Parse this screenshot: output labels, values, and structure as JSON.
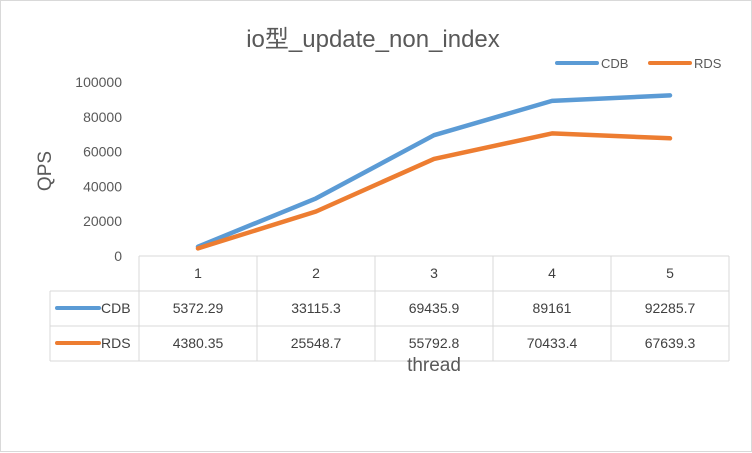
{
  "chart_data": {
    "type": "line",
    "title": "io型_update_non_index",
    "xlabel": "thread",
    "ylabel": "QPS",
    "categories": [
      "1",
      "2",
      "3",
      "4",
      "5"
    ],
    "ylim": [
      0,
      100000
    ],
    "yticks": [
      0,
      20000,
      40000,
      60000,
      80000,
      100000
    ],
    "grid": false,
    "legend": "top-right",
    "data_table": true,
    "series": [
      {
        "name": "CDB",
        "color": "#5b9bd5",
        "values": [
          5372.29,
          33115.3,
          69435.9,
          89161,
          92285.7
        ],
        "labels": [
          "5372.29",
          "33115.3",
          "69435.9",
          "89161",
          "92285.7"
        ]
      },
      {
        "name": "RDS",
        "color": "#ed7d31",
        "values": [
          4380.35,
          25548.7,
          55792.8,
          70433.4,
          67639.3
        ],
        "labels": [
          "4380.35",
          "25548.7",
          "55792.8",
          "70433.4",
          "67639.3"
        ]
      }
    ]
  }
}
